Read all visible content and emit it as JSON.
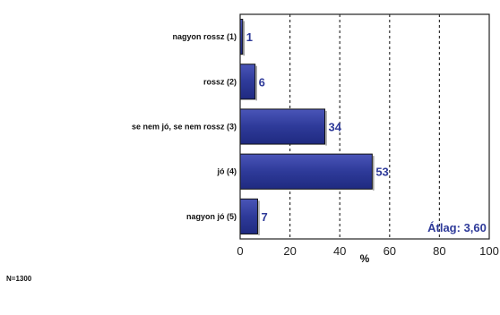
{
  "chart_data": {
    "type": "bar",
    "orientation": "horizontal",
    "categories": [
      "nagyon rossz (1)",
      "rossz (2)",
      "se nem jó, se nem rossz (3)",
      "jó (4)",
      "nagyon jó (5)"
    ],
    "values": [
      1,
      6,
      34,
      53,
      7
    ],
    "xlabel": "%",
    "xlim": [
      0,
      100
    ],
    "xticks": [
      "0",
      "20",
      "40",
      "60",
      "80",
      "100"
    ],
    "grid": "vertical dashed",
    "bar_color": "#2e3a99",
    "label_color": "#2e3a99",
    "annotation": "Átlag: 3,60"
  },
  "footnote": "N=1300"
}
